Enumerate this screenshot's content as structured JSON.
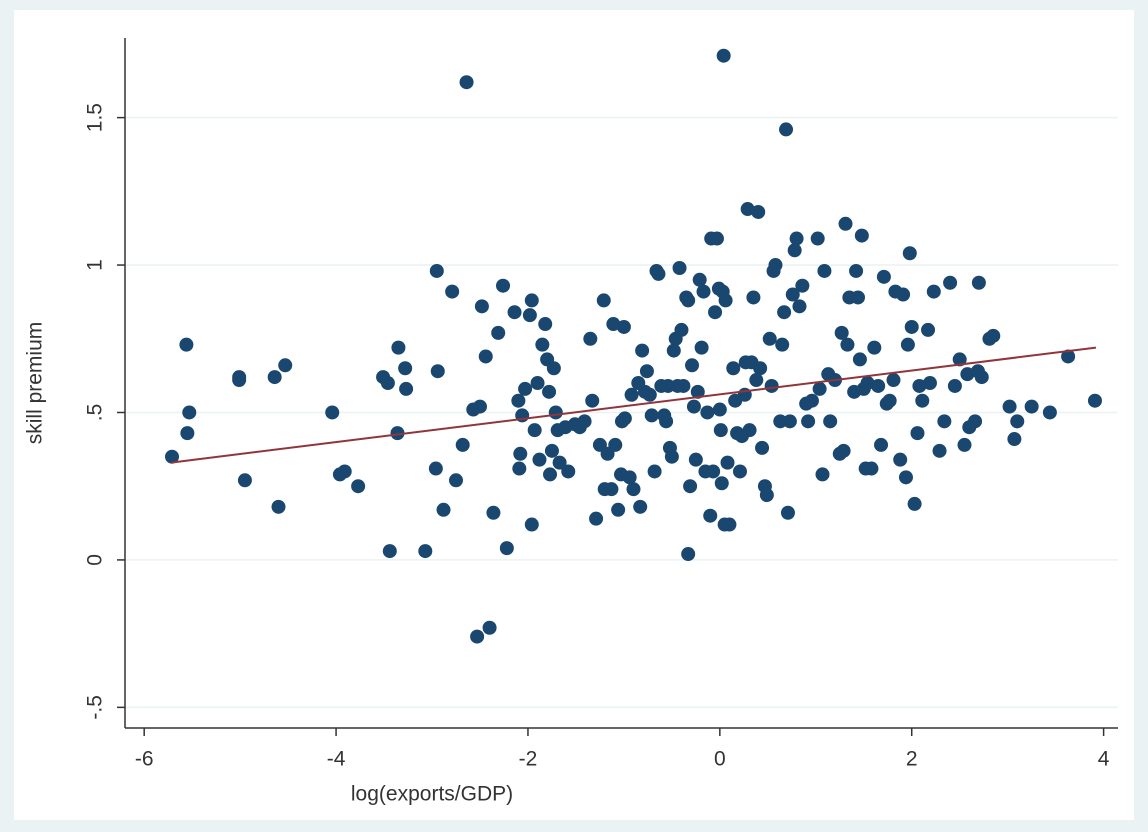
{
  "chart_data": {
    "type": "scatter",
    "xlabel": "log(exports/GDP)",
    "ylabel": "skill premium",
    "xlim": [
      -6.2,
      4.15
    ],
    "ylim": [
      -0.57,
      1.77
    ],
    "xticks": [
      -6,
      -4,
      -2,
      0,
      2,
      4
    ],
    "yticks": [
      {
        "value": -0.5,
        "label": "-.5"
      },
      0,
      {
        "value": 0.5,
        "label": ".5"
      },
      1,
      1.5
    ],
    "grid": true,
    "color": "#1a476f",
    "x": [
      -5.71,
      -5.56,
      -5.53,
      -5.55,
      -5.01,
      -5.01,
      -4.95,
      -4.64,
      -4.6,
      -4.53,
      -4.04,
      -3.96,
      -3.91,
      -3.77,
      -3.51,
      -3.46,
      -3.44,
      -3.36,
      -3.35,
      -3.28,
      -3.27,
      -3.07,
      -2.96,
      -2.95,
      -2.94,
      -2.88,
      -2.79,
      -2.75,
      -2.68,
      -2.64,
      -2.57,
      -2.53,
      -2.5,
      -2.48,
      -2.44,
      -2.4,
      -2.36,
      -2.31,
      -2.26,
      -2.22,
      -2.14,
      -2.1,
      -2.09,
      -2.08,
      -2.06,
      -2.03,
      -1.98,
      -1.96,
      -1.96,
      -1.93,
      -1.9,
      -1.88,
      -1.85,
      -1.82,
      -1.8,
      -1.78,
      -1.77,
      -1.75,
      -1.73,
      -1.71,
      -1.69,
      -1.67,
      -1.61,
      -1.58,
      -1.51,
      -1.46,
      -1.41,
      -1.35,
      -1.33,
      -1.29,
      -1.25,
      -1.21,
      -1.2,
      -1.17,
      -1.13,
      -1.11,
      -1.09,
      -1.06,
      -1.03,
      -1.02,
      -1,
      -0.99,
      -0.94,
      -0.92,
      -0.9,
      -0.85,
      -0.83,
      -0.81,
      -0.78,
      -0.76,
      -0.73,
      -0.71,
      -0.68,
      -0.66,
      -0.64,
      -0.61,
      -0.58,
      -0.56,
      -0.54,
      -0.52,
      -0.5,
      -0.48,
      -0.46,
      -0.44,
      -0.42,
      -0.4,
      -0.38,
      -0.35,
      -0.33,
      -0.33,
      -0.31,
      -0.29,
      -0.27,
      -0.25,
      -0.23,
      -0.21,
      -0.19,
      -0.17,
      -0.15,
      -0.13,
      -0.1,
      -0.09,
      -0.07,
      -0.05,
      -0.03,
      -0.01,
      0,
      0.01,
      0.02,
      0.03,
      0.04,
      0.05,
      0.06,
      0.08,
      0.1,
      0.14,
      0.16,
      0.18,
      0.21,
      0.23,
      0.26,
      0.27,
      0.29,
      0.31,
      0.33,
      0.35,
      0.38,
      0.4,
      0.42,
      0.44,
      0.47,
      0.49,
      0.52,
      0.54,
      0.56,
      0.58,
      0.63,
      0.65,
      0.67,
      0.69,
      0.71,
      0.73,
      0.76,
      0.78,
      0.8,
      0.83,
      0.86,
      0.9,
      0.92,
      0.96,
      1.02,
      1.04,
      1.07,
      1.09,
      1.13,
      1.15,
      1.2,
      1.25,
      1.27,
      1.29,
      1.31,
      1.33,
      1.35,
      1.4,
      1.42,
      1.44,
      1.46,
      1.48,
      1.5,
      1.52,
      1.54,
      1.58,
      1.61,
      1.65,
      1.68,
      1.71,
      1.74,
      1.77,
      1.81,
      1.83,
      1.88,
      1.91,
      1.94,
      1.96,
      1.98,
      2,
      2.03,
      2.06,
      2.08,
      2.11,
      2.17,
      2.19,
      2.23,
      2.29,
      2.34,
      2.4,
      2.45,
      2.5,
      2.55,
      2.58,
      2.6,
      2.66,
      2.69,
      2.7,
      2.73,
      2.81,
      2.85,
      3.02,
      3.07,
      3.1,
      3.25,
      3.44,
      3.63,
      3.91
    ],
    "values": [
      0.35,
      0.73,
      0.5,
      0.43,
      0.62,
      0.61,
      0.27,
      0.62,
      0.18,
      0.66,
      0.5,
      0.29,
      0.3,
      0.25,
      0.62,
      0.6,
      0.03,
      0.43,
      0.72,
      0.65,
      0.58,
      0.03,
      0.31,
      0.98,
      0.64,
      0.17,
      0.91,
      0.27,
      0.39,
      1.62,
      0.51,
      -0.26,
      0.52,
      0.86,
      0.69,
      -0.23,
      0.16,
      0.77,
      0.93,
      0.04,
      0.84,
      0.54,
      0.31,
      0.36,
      0.49,
      0.58,
      0.83,
      0.88,
      0.12,
      0.44,
      0.6,
      0.34,
      0.73,
      0.8,
      0.68,
      0.57,
      0.29,
      0.37,
      0.65,
      0.5,
      0.44,
      0.33,
      0.45,
      0.3,
      0.46,
      0.45,
      0.47,
      0.75,
      0.54,
      0.14,
      0.39,
      0.88,
      0.24,
      0.36,
      0.24,
      0.8,
      0.39,
      0.17,
      0.29,
      0.47,
      0.79,
      0.48,
      0.28,
      0.56,
      0.24,
      0.6,
      0.18,
      0.71,
      0.57,
      0.64,
      0.56,
      0.49,
      0.3,
      0.98,
      0.97,
      0.59,
      0.49,
      0.47,
      0.59,
      0.38,
      0.35,
      0.71,
      0.75,
      0.59,
      0.99,
      0.78,
      0.59,
      0.89,
      0.88,
      0.02,
      0.25,
      0.66,
      0.52,
      0.34,
      0.57,
      0.95,
      0.72,
      0.91,
      0.3,
      0.5,
      0.15,
      1.09,
      0.3,
      0.84,
      1.09,
      0.92,
      0.51,
      0.44,
      0.26,
      0.91,
      1.71,
      0.12,
      0.88,
      0.33,
      0.12,
      0.65,
      0.54,
      0.43,
      0.3,
      0.42,
      0.56,
      0.67,
      1.19,
      0.44,
      0.67,
      0.89,
      0.61,
      1.18,
      0.65,
      0.38,
      0.25,
      0.22,
      0.75,
      0.59,
      0.98,
      1,
      0.47,
      0.73,
      0.84,
      1.46,
      0.16,
      0.47,
      0.9,
      1.05,
      1.09,
      0.86,
      0.93,
      0.53,
      0.47,
      0.54,
      1.09,
      0.58,
      0.29,
      0.98,
      0.63,
      0.47,
      0.61,
      0.36,
      0.77,
      0.37,
      1.14,
      0.73,
      0.89,
      0.57,
      0.98,
      0.89,
      0.68,
      1.1,
      0.58,
      0.31,
      0.6,
      0.31,
      0.72,
      0.59,
      0.39,
      0.96,
      0.53,
      0.54,
      0.61,
      0.91,
      0.34,
      0.9,
      0.28,
      0.73,
      1.04,
      0.79,
      0.19,
      0.43,
      0.59,
      0.54,
      0.78,
      0.6,
      0.91,
      0.37,
      0.47,
      0.94,
      0.59,
      0.68,
      0.39,
      0.63,
      0.45,
      0.47,
      0.64,
      0.94,
      0.62,
      0.75,
      0.76,
      0.52,
      0.41,
      0.47,
      0.52,
      0.5,
      0.69,
      0.54
    ],
    "fit_line": {
      "x": [
        -5.72,
        3.92
      ],
      "values": [
        0.33,
        0.72
      ],
      "color": "#90353b"
    }
  }
}
